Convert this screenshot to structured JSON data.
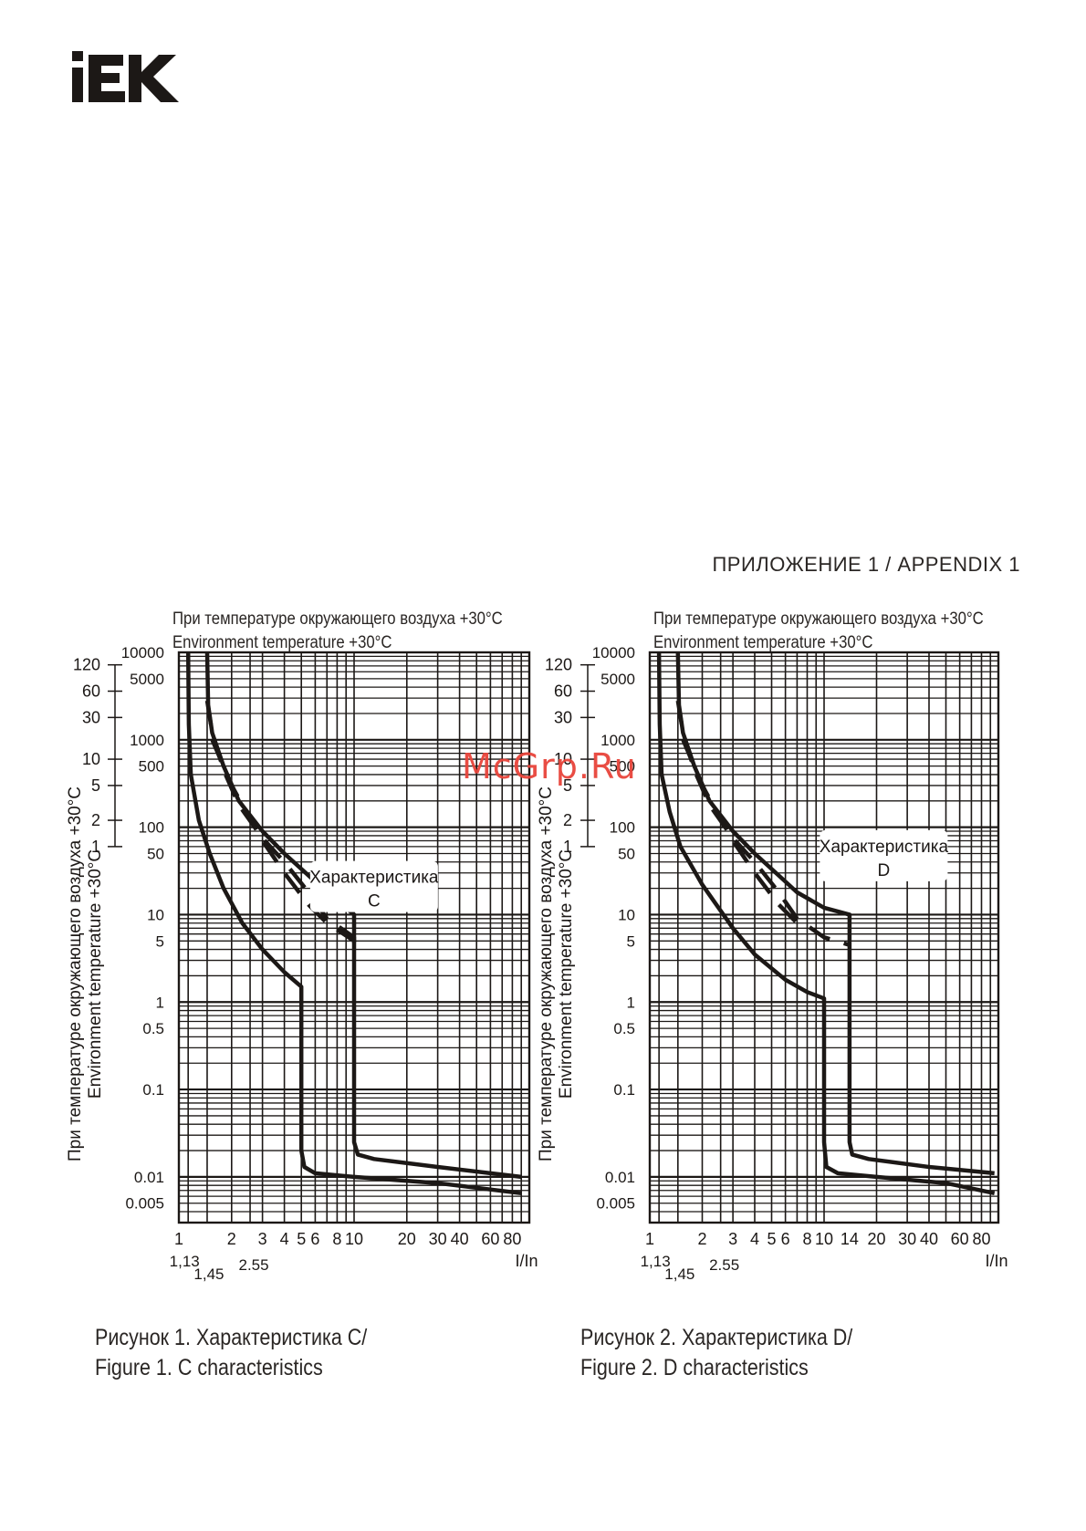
{
  "brand": {
    "logo_text": "IEK",
    "color": "#1c1816"
  },
  "header": {
    "appendix": "ПРИЛОЖЕНИЕ 1 / APPENDIX 1"
  },
  "watermark": {
    "text": "McGrp.Ru",
    "color": "#e8443a"
  },
  "figures": [
    {
      "env_ru": "При температуре окружающего воздуха +30°С",
      "env_en": "Environment temperature +30°С",
      "caption_line1": "Рисунок 1. Характеристика C/",
      "caption_line2": "Figure 1. C characteristics"
    },
    {
      "env_ru": "При температуре окружающего воздуха +30°С",
      "env_en": "Environment temperature +30°С",
      "caption_line1": "Рисунок 2. Характеристика D/",
      "caption_line2": "Figure 2. D characteristics"
    }
  ],
  "chart_data": [
    {
      "type": "line",
      "log_x": true,
      "log_y": true,
      "xlim": [
        1,
        100
      ],
      "ylim": [
        0.003,
        10000
      ],
      "grid": true,
      "xlabel": "I/In",
      "ylabel_ru": "При температуре окружающего воздуха +30°С",
      "ylabel_en": "Environment temperature +30°С",
      "x_ticks": [
        "1",
        "2",
        "3",
        "4",
        "5",
        "6",
        "8",
        "10",
        "20",
        "30",
        "40",
        "60",
        "80"
      ],
      "x_ticks_extra": [
        "1,13",
        "1,45",
        "2.55"
      ],
      "y_ticks_seconds": [
        "10000",
        "5000",
        "1000",
        "500",
        "100",
        "50",
        "10",
        "5",
        "1",
        "0.5",
        "0.1",
        "0.01",
        "0.005"
      ],
      "y_ticks_minutes": [
        "120",
        "60",
        "30",
        "10",
        "5",
        "2",
        "1"
      ],
      "annotation_line1": "Характеристика",
      "annotation_line2": "C",
      "series": [
        {
          "style": "solid",
          "points": [
            [
              1.13,
              10000
            ],
            [
              1.14,
              1500
            ],
            [
              1.17,
              400
            ],
            [
              1.3,
              120
            ],
            [
              1.5,
              50
            ],
            [
              1.8,
              20
            ],
            [
              2.3,
              8
            ],
            [
              3,
              4
            ],
            [
              4,
              2.2
            ],
            [
              5,
              1.5
            ],
            [
              5,
              0.02
            ],
            [
              5.2,
              0.013
            ],
            [
              6,
              0.011
            ],
            [
              10,
              0.01
            ],
            [
              30,
              0.0085
            ],
            [
              90,
              0.0065
            ]
          ]
        },
        {
          "style": "solid",
          "points": [
            [
              1.45,
              10000
            ],
            [
              1.47,
              2500
            ],
            [
              1.55,
              1200
            ],
            [
              1.8,
              500
            ],
            [
              2.2,
              200
            ],
            [
              3,
              90
            ],
            [
              4,
              50
            ],
            [
              5.5,
              28
            ],
            [
              7,
              18
            ],
            [
              10,
              10
            ],
            [
              10,
              0.025
            ],
            [
              10.5,
              0.018
            ],
            [
              13,
              0.016
            ],
            [
              30,
              0.013
            ],
            [
              90,
              0.01
            ]
          ]
        },
        {
          "style": "dashed",
          "points": [
            [
              1.45,
              2800
            ],
            [
              1.55,
              1200
            ],
            [
              1.8,
              450
            ],
            [
              2.2,
              180
            ],
            [
              3,
              75
            ],
            [
              4,
              40
            ],
            [
              5.5,
              18
            ],
            [
              7,
              9
            ],
            [
              10,
              5.5
            ],
            [
              10,
              4.5
            ]
          ]
        },
        {
          "style": "dashed",
          "points": [
            [
              1.55,
              1000
            ],
            [
              2,
              300
            ],
            [
              3,
              70
            ],
            [
              4,
              30
            ],
            [
              5.5,
              13
            ],
            [
              7,
              8
            ],
            [
              10,
              5
            ]
          ]
        }
      ]
    },
    {
      "type": "line",
      "log_x": true,
      "log_y": true,
      "xlim": [
        1,
        100
      ],
      "ylim": [
        0.003,
        10000
      ],
      "grid": true,
      "xlabel": "I/In",
      "ylabel_ru": "При температуре окружающего воздуха +30°С",
      "ylabel_en": "Environment temperature +30°С",
      "x_ticks": [
        "1",
        "2",
        "3",
        "4",
        "5",
        "6",
        "8",
        "10",
        "14",
        "20",
        "30",
        "40",
        "60",
        "80"
      ],
      "x_ticks_extra": [
        "1,13",
        "1,45",
        "2.55"
      ],
      "y_ticks_seconds": [
        "10000",
        "5000",
        "1000",
        "500",
        "100",
        "50",
        "10",
        "5",
        "1",
        "0.5",
        "0.1",
        "0.01",
        "0.005"
      ],
      "y_ticks_minutes": [
        "120",
        "60",
        "30",
        "10",
        "5",
        "2",
        "1"
      ],
      "annotation_line1": "Характеристика",
      "annotation_line2": "D",
      "series": [
        {
          "style": "solid",
          "points": [
            [
              1.13,
              10000
            ],
            [
              1.14,
              1500
            ],
            [
              1.17,
              400
            ],
            [
              1.3,
              150
            ],
            [
              1.5,
              60
            ],
            [
              2,
              22
            ],
            [
              3,
              7
            ],
            [
              4,
              3.5
            ],
            [
              6,
              1.8
            ],
            [
              8,
              1.3
            ],
            [
              10,
              1.1
            ],
            [
              10,
              0.025
            ],
            [
              10.3,
              0.013
            ],
            [
              12,
              0.011
            ],
            [
              20,
              0.01
            ],
            [
              50,
              0.0085
            ],
            [
              95,
              0.0065
            ]
          ]
        },
        {
          "style": "solid",
          "points": [
            [
              1.45,
              10000
            ],
            [
              1.47,
              2500
            ],
            [
              1.55,
              1200
            ],
            [
              1.8,
              500
            ],
            [
              2.2,
              200
            ],
            [
              3,
              90
            ],
            [
              4,
              50
            ],
            [
              5.5,
              28
            ],
            [
              7,
              18
            ],
            [
              10,
              12
            ],
            [
              14,
              10
            ],
            [
              14,
              0.025
            ],
            [
              14.5,
              0.018
            ],
            [
              18,
              0.016
            ],
            [
              40,
              0.013
            ],
            [
              95,
              0.011
            ]
          ]
        },
        {
          "style": "dashed",
          "points": [
            [
              1.45,
              2800
            ],
            [
              1.55,
              1200
            ],
            [
              1.8,
              450
            ],
            [
              2.2,
              180
            ],
            [
              3,
              75
            ],
            [
              4,
              40
            ],
            [
              5.5,
              18
            ],
            [
              7,
              9
            ],
            [
              10,
              5.5
            ],
            [
              14,
              4.5
            ]
          ]
        },
        {
          "style": "dashed",
          "points": [
            [
              1.55,
              1000
            ],
            [
              2,
              300
            ],
            [
              3,
              70
            ],
            [
              4,
              30
            ],
            [
              5.5,
              13
            ],
            [
              7,
              8
            ]
          ]
        }
      ]
    }
  ]
}
